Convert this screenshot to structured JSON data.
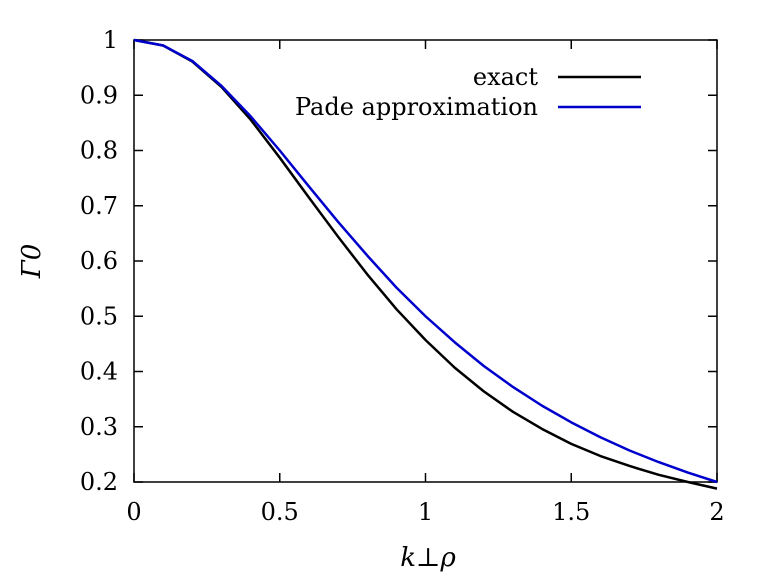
{
  "chart_data": {
    "type": "line",
    "xlabel": "k⊥ρ",
    "ylabel": "Γ0",
    "xlim": [
      0,
      2
    ],
    "ylim": [
      0.2,
      1
    ],
    "x_ticks": [
      "0",
      "0.5",
      "1",
      "1.5",
      "2"
    ],
    "y_ticks": [
      "0.2",
      "0.3",
      "0.4",
      "0.5",
      "0.6",
      "0.7",
      "0.8",
      "0.9",
      "1"
    ],
    "grid": false,
    "legend_position": "top-right",
    "series": [
      {
        "name": "exact",
        "color": "#000000",
        "x": [
          0,
          0.1,
          0.2,
          0.3,
          0.4,
          0.5,
          0.6,
          0.7,
          0.8,
          0.9,
          1.0,
          1.1,
          1.2,
          1.3,
          1.4,
          1.5,
          1.6,
          1.7,
          1.8,
          1.9,
          2.0
        ],
        "y": [
          1.0,
          0.99,
          0.961,
          0.915,
          0.856,
          0.787,
          0.715,
          0.644,
          0.576,
          0.513,
          0.457,
          0.407,
          0.364,
          0.327,
          0.296,
          0.269,
          0.247,
          0.229,
          0.213,
          0.2,
          0.188
        ]
      },
      {
        "name": "Pade approximation",
        "color": "#0000cc",
        "x": [
          0,
          0.1,
          0.2,
          0.3,
          0.4,
          0.5,
          0.6,
          0.7,
          0.8,
          0.9,
          1.0,
          1.1,
          1.2,
          1.3,
          1.4,
          1.5,
          1.6,
          1.7,
          1.8,
          1.9,
          2.0
        ],
        "y": [
          1.0,
          0.99,
          0.962,
          0.917,
          0.862,
          0.8,
          0.735,
          0.671,
          0.61,
          0.552,
          0.5,
          0.453,
          0.41,
          0.372,
          0.338,
          0.308,
          0.281,
          0.257,
          0.236,
          0.217,
          0.2
        ]
      }
    ]
  }
}
